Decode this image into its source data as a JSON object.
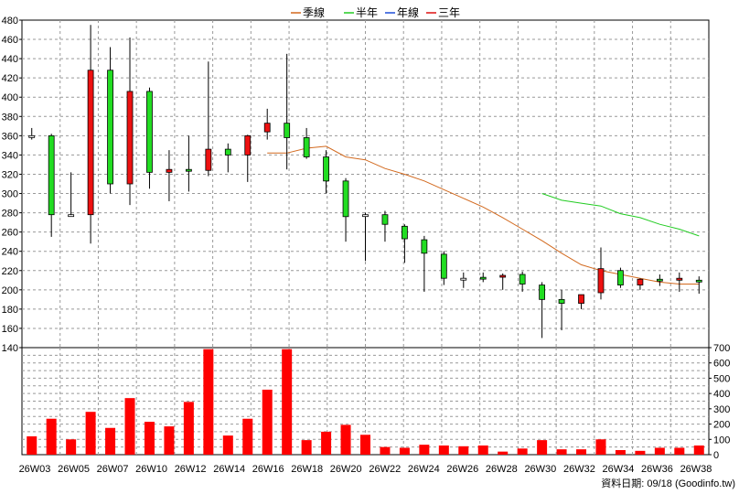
{
  "chart_data": {
    "type": "candlestick",
    "legend": [
      {
        "name": "季線",
        "color": "#d2691e"
      },
      {
        "name": "半年",
        "color": "#22cc22"
      },
      {
        "name": "年線",
        "color": "#1f4fd8"
      },
      {
        "name": "三年",
        "color": "#dd1111"
      }
    ],
    "price_axis": {
      "ylim": [
        140,
        480
      ],
      "ticks": [
        140,
        160,
        180,
        200,
        220,
        240,
        260,
        280,
        300,
        320,
        340,
        360,
        380,
        400,
        420,
        440,
        460,
        480
      ]
    },
    "volume_axis": {
      "ylim": [
        0,
        700
      ],
      "ticks": [
        0,
        100,
        200,
        300,
        400,
        500,
        600,
        700
      ]
    },
    "x_tick_labels": [
      "26W03",
      "26W05",
      "26W07",
      "26W10",
      "26W12",
      "26W14",
      "26W16",
      "26W18",
      "26W20",
      "26W22",
      "26W24",
      "26W26",
      "26W28",
      "26W30",
      "26W32",
      "26W34",
      "26W36",
      "26W38"
    ],
    "candles": [
      {
        "o": 360,
        "h": 368,
        "l": 356,
        "c": 360
      },
      {
        "o": 360,
        "h": 362,
        "l": 255,
        "c": 278
      },
      {
        "o": 278,
        "h": 322,
        "l": 276,
        "c": 278
      },
      {
        "o": 278,
        "h": 475,
        "l": 248,
        "c": 428
      },
      {
        "o": 428,
        "h": 452,
        "l": 300,
        "c": 310
      },
      {
        "o": 310,
        "h": 462,
        "l": 288,
        "c": 406
      },
      {
        "o": 406,
        "h": 410,
        "l": 305,
        "c": 322
      },
      {
        "o": 322,
        "h": 345,
        "l": 292,
        "c": 325
      },
      {
        "o": 325,
        "h": 360,
        "l": 302,
        "c": 324
      },
      {
        "o": 324,
        "h": 437,
        "l": 318,
        "c": 346
      },
      {
        "o": 346,
        "h": 352,
        "l": 322,
        "c": 340
      },
      {
        "o": 340,
        "h": 361,
        "l": 312,
        "c": 360
      },
      {
        "o": 364,
        "h": 388,
        "l": 356,
        "c": 373
      },
      {
        "o": 373,
        "h": 445,
        "l": 325,
        "c": 358
      },
      {
        "o": 358,
        "h": 368,
        "l": 336,
        "c": 338
      },
      {
        "o": 338,
        "h": 345,
        "l": 300,
        "c": 313
      },
      {
        "o": 313,
        "h": 316,
        "l": 250,
        "c": 276
      },
      {
        "o": 278,
        "h": 280,
        "l": 230,
        "c": 278
      },
      {
        "o": 278,
        "h": 282,
        "l": 250,
        "c": 268
      },
      {
        "o": 266,
        "h": 268,
        "l": 228,
        "c": 253
      },
      {
        "o": 252,
        "h": 256,
        "l": 198,
        "c": 238
      },
      {
        "o": 237,
        "h": 240,
        "l": 205,
        "c": 212
      },
      {
        "o": 212,
        "h": 218,
        "l": 202,
        "c": 212
      },
      {
        "o": 213,
        "h": 218,
        "l": 208,
        "c": 212
      },
      {
        "o": 214,
        "h": 217,
        "l": 200,
        "c": 215
      },
      {
        "o": 216,
        "h": 219,
        "l": 198,
        "c": 206
      },
      {
        "o": 205,
        "h": 208,
        "l": 150,
        "c": 190
      },
      {
        "o": 190,
        "h": 200,
        "l": 158,
        "c": 186
      },
      {
        "o": 186,
        "h": 195,
        "l": 180,
        "c": 195
      },
      {
        "o": 197,
        "h": 244,
        "l": 190,
        "c": 222
      },
      {
        "o": 220,
        "h": 223,
        "l": 202,
        "c": 205
      },
      {
        "o": 205,
        "h": 212,
        "l": 200,
        "c": 211
      },
      {
        "o": 211,
        "h": 216,
        "l": 204,
        "c": 210
      },
      {
        "o": 210,
        "h": 218,
        "l": 198,
        "c": 212
      },
      {
        "o": 210,
        "h": 214,
        "l": 196,
        "c": 209
      }
    ],
    "ma_season": [
      null,
      null,
      null,
      null,
      null,
      null,
      null,
      null,
      null,
      null,
      null,
      null,
      342,
      342,
      347,
      349,
      338,
      335,
      326,
      320,
      313,
      304,
      295,
      286,
      275,
      263,
      251,
      238,
      226,
      220,
      216,
      212,
      208,
      206,
      206
    ],
    "ma_half": [
      null,
      null,
      null,
      null,
      null,
      null,
      null,
      null,
      null,
      null,
      null,
      null,
      null,
      null,
      null,
      null,
      null,
      null,
      null,
      null,
      null,
      null,
      null,
      null,
      null,
      null,
      300,
      293,
      290,
      287,
      279,
      275,
      268,
      263,
      256
    ],
    "volume": [
      120,
      235,
      100,
      280,
      175,
      370,
      215,
      185,
      345,
      690,
      125,
      235,
      425,
      690,
      95,
      150,
      195,
      130,
      50,
      45,
      65,
      60,
      55,
      60,
      20,
      40,
      95,
      35,
      35,
      100,
      30,
      25,
      45,
      45,
      60
    ],
    "footer": "資料日期: 09/18 (Goodinfo.tw)"
  }
}
